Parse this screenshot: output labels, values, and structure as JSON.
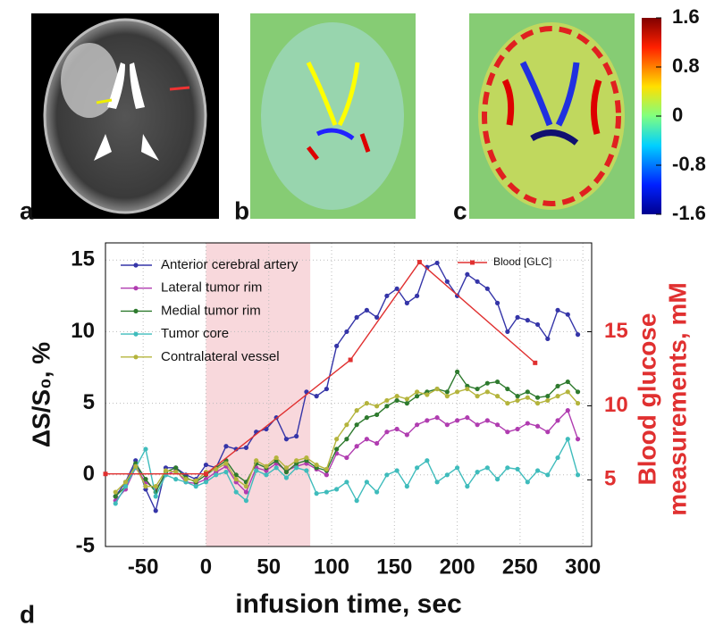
{
  "panel_labels": [
    "a",
    "b",
    "c",
    "d"
  ],
  "colorbar": {
    "lim": [
      -1.6,
      1.6
    ],
    "ticks": [
      1.6,
      0.8,
      0,
      -0.8,
      -1.6
    ]
  },
  "chart_data": {
    "type": "line",
    "xlabel": "infusion time, sec",
    "ylabel": "ΔS/S₀, %",
    "y2label": [
      "Blood glucose",
      "measurements, mM"
    ],
    "xlim": [
      -80,
      307
    ],
    "xticks": [
      -50,
      0,
      50,
      100,
      150,
      200,
      250,
      300
    ],
    "ylim": [
      -5,
      16.2
    ],
    "yticks": [
      -5,
      0,
      5,
      10,
      15
    ],
    "y2lim": [
      0.5,
      21
    ],
    "y2ticks": [
      5,
      10,
      15
    ],
    "grid": true,
    "legend": "upper left",
    "highlight_span": [
      0,
      83
    ],
    "highlight_color": "#f8d8dc",
    "x": [
      -72,
      -64,
      -56,
      -48,
      -40,
      -32,
      -24,
      -16,
      -8,
      0,
      8,
      16,
      24,
      32,
      40,
      48,
      56,
      64,
      72,
      80,
      88,
      96,
      104,
      112,
      120,
      128,
      136,
      144,
      152,
      160,
      168,
      176,
      184,
      192,
      200,
      208,
      216,
      224,
      232,
      240,
      248,
      256,
      264,
      272,
      280,
      288,
      296
    ],
    "series": [
      {
        "name": "Anterior cerebral artery",
        "color": "#3535a8",
        "values": [
          -1.5,
          -0.5,
          1,
          -1,
          -2.5,
          0.5,
          0.5,
          0,
          -0.3,
          0.7,
          0.5,
          2,
          1.8,
          1.9,
          3,
          3.2,
          4,
          2.5,
          2.7,
          5.8,
          5.5,
          6,
          9,
          10,
          11,
          11.5,
          11,
          12.5,
          13,
          12,
          12.5,
          14.5,
          14.8,
          13.5,
          12.5,
          14,
          13.5,
          13,
          12,
          10,
          11,
          10.8,
          10.5,
          9.5,
          11.5,
          11.2,
          9.8
        ]
      },
      {
        "name": "Lateral tumor rim",
        "color": "#b03cb0",
        "values": [
          -1.8,
          -1,
          0.5,
          -0.5,
          -1,
          0,
          0.3,
          -0.5,
          -0.6,
          -0.3,
          0.2,
          0.6,
          -0.5,
          -1.2,
          0.5,
          0.3,
          0.8,
          0.3,
          0.6,
          0.8,
          0.4,
          0,
          1.5,
          1.2,
          2,
          2.5,
          2.2,
          3,
          3.2,
          2.8,
          3.5,
          3.8,
          4,
          3.5,
          3.8,
          4,
          3.5,
          3.8,
          3.5,
          3,
          3.2,
          3.6,
          3.4,
          3,
          3.8,
          4.5,
          2.5
        ]
      },
      {
        "name": "Medial tumor rim",
        "color": "#2e7a2e",
        "values": [
          -1.5,
          -0.8,
          0.8,
          -0.3,
          -1.2,
          0.2,
          0.5,
          -0.2,
          -0.5,
          0,
          0.5,
          1,
          0,
          -0.5,
          0.8,
          0.5,
          1,
          0.2,
          0.8,
          1,
          0.5,
          0.3,
          1.8,
          2.5,
          3.5,
          4,
          4.2,
          4.8,
          5.2,
          5,
          5.5,
          5.8,
          6,
          5.8,
          7.2,
          6.2,
          6,
          6.4,
          6.5,
          6,
          5.5,
          5.8,
          5.4,
          5.5,
          6.2,
          6.5,
          5.8
        ]
      },
      {
        "name": "Tumor core",
        "color": "#3fbcbc",
        "values": [
          -2,
          -0.8,
          0.5,
          1.8,
          -1.5,
          0,
          -0.3,
          -0.5,
          -0.8,
          -0.5,
          0,
          0.2,
          -1.2,
          -1.8,
          0.3,
          0,
          0.5,
          -0.2,
          0.5,
          0.3,
          -1.3,
          -1.2,
          -1,
          -0.5,
          -1.8,
          -0.5,
          -1.2,
          0,
          0.3,
          -0.8,
          0.5,
          1,
          -0.5,
          0,
          0.5,
          -0.8,
          0.2,
          0.5,
          -0.3,
          0.5,
          0.4,
          -0.5,
          0.3,
          0,
          1.2,
          2.5,
          0
        ]
      },
      {
        "name": "Contralateral vessel",
        "color": "#b4b43c",
        "values": [
          -1.2,
          -0.5,
          0.6,
          -0.8,
          -0.8,
          0.3,
          0.2,
          -0.3,
          -0.4,
          0.2,
          0.4,
          0.8,
          -0.3,
          -0.8,
          1,
          0.6,
          1.2,
          0.5,
          1,
          1.2,
          0.7,
          0.4,
          2.5,
          3.5,
          4.5,
          5,
          4.8,
          5.2,
          5.5,
          5.3,
          5.8,
          5.6,
          6,
          5.5,
          5.8,
          6,
          5.5,
          5.8,
          5.5,
          5,
          5.2,
          5.4,
          5,
          5.2,
          5.5,
          5.8,
          5
        ]
      },
      {
        "name": "Blood [GLC]",
        "color": "#e03030",
        "axis": "y2",
        "x": [
          -80,
          0,
          115,
          170,
          262
        ],
        "values": [
          5.4,
          5.4,
          13.1,
          19.7,
          12.9
        ]
      }
    ]
  }
}
